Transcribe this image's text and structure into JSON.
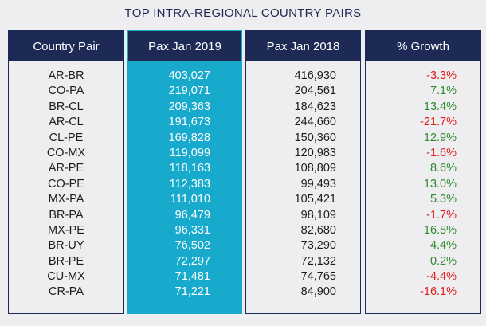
{
  "title": "TOP INTRA-REGIONAL COUNTRY PAIRS",
  "headers": [
    "Country Pair",
    "Pax Jan 2019",
    "Pax Jan 2018",
    "% Growth"
  ],
  "rows": [
    {
      "pair": "AR-BR",
      "pax2019": "403,027",
      "pax2018": "416,930",
      "growth": "-3.3%"
    },
    {
      "pair": "CO-PA",
      "pax2019": "219,071",
      "pax2018": "204,561",
      "growth": "7.1%"
    },
    {
      "pair": "BR-CL",
      "pax2019": "209,363",
      "pax2018": "184,623",
      "growth": "13.4%"
    },
    {
      "pair": "AR-CL",
      "pax2019": "191,673",
      "pax2018": "244,660",
      "growth": "-21.7%"
    },
    {
      "pair": "CL-PE",
      "pax2019": "169,828",
      "pax2018": "150,360",
      "growth": "12.9%"
    },
    {
      "pair": "CO-MX",
      "pax2019": "119,099",
      "pax2018": "120,983",
      "growth": "-1.6%"
    },
    {
      "pair": "AR-PE",
      "pax2019": "118,163",
      "pax2018": "108,809",
      "growth": "8.6%"
    },
    {
      "pair": "CO-PE",
      "pax2019": "112,383",
      "pax2018": "99,493",
      "growth": "13.0%"
    },
    {
      "pair": "MX-PA",
      "pax2019": "111,010",
      "pax2018": "105,421",
      "growth": "5.3%"
    },
    {
      "pair": "BR-PA",
      "pax2019": "96,479",
      "pax2018": "98,109",
      "growth": "-1.7%"
    },
    {
      "pair": "MX-PE",
      "pax2019": "96,331",
      "pax2018": "82,680",
      "growth": "16.5%"
    },
    {
      "pair": "BR-UY",
      "pax2019": "76,502",
      "pax2018": "73,290",
      "growth": "4.4%"
    },
    {
      "pair": "BR-PE",
      "pax2019": "72,297",
      "pax2018": "72,132",
      "growth": "0.2%"
    },
    {
      "pair": "CU-MX",
      "pax2019": "71,481",
      "pax2018": "74,765",
      "growth": "-4.4%"
    },
    {
      "pair": "CR-PA",
      "pax2019": "71,221",
      "pax2018": "84,900",
      "growth": "-16.1%"
    }
  ],
  "colors": {
    "header_bg": "#1d2a55",
    "highlight_col": "#17aacd",
    "positive": "#2e8b2e",
    "negative": "#e02020"
  }
}
